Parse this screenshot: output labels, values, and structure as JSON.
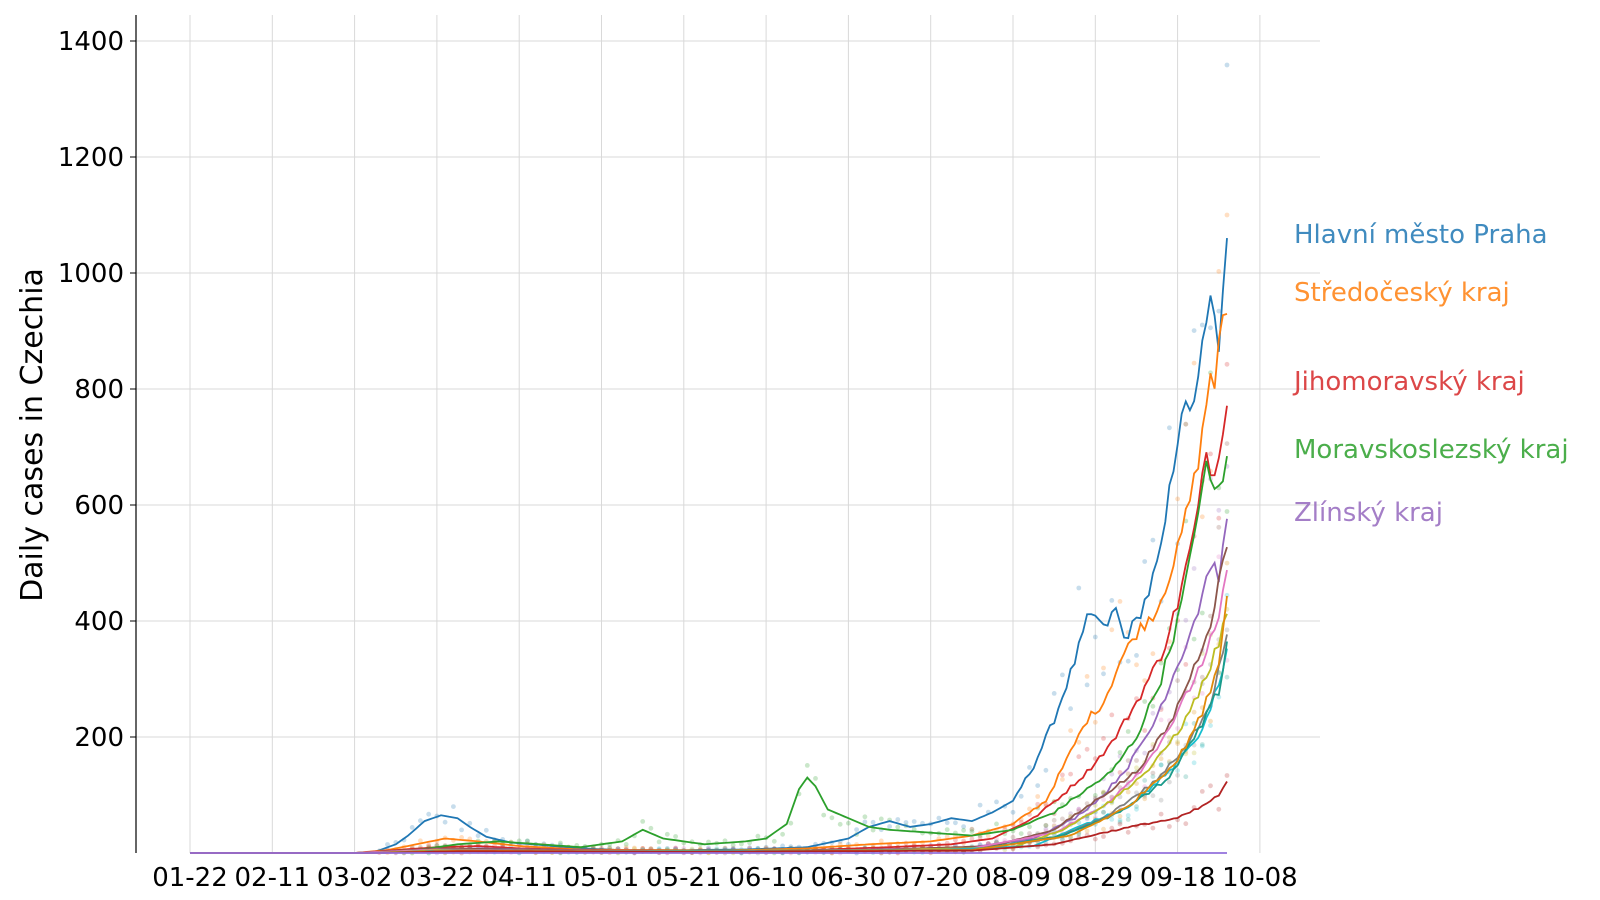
{
  "chart_data": {
    "type": "line",
    "ylabel": "Daily cases in Czechia",
    "xlabel": "",
    "title": "",
    "ylim": [
      0,
      1450
    ],
    "y_ticks": [
      200,
      400,
      600,
      800,
      1000,
      1200,
      1400
    ],
    "x_ticks": [
      "01-22",
      "02-11",
      "03-02",
      "03-22",
      "04-11",
      "05-01",
      "05-21",
      "06-10",
      "06-30",
      "07-20",
      "08-09",
      "08-29",
      "09-18",
      "10-08"
    ],
    "grid": true,
    "raw_points_shown": true,
    "series": [
      {
        "name": "Hlavní město Praha",
        "color": "#1f77b4",
        "labeled": true,
        "points": [
          [
            0,
            0
          ],
          [
            40,
            0
          ],
          [
            45,
            2
          ],
          [
            50,
            15
          ],
          [
            53,
            30
          ],
          [
            57,
            55
          ],
          [
            61,
            65
          ],
          [
            65,
            60
          ],
          [
            68,
            45
          ],
          [
            72,
            28
          ],
          [
            78,
            18
          ],
          [
            85,
            14
          ],
          [
            95,
            8
          ],
          [
            105,
            5
          ],
          [
            120,
            5
          ],
          [
            135,
            6
          ],
          [
            150,
            10
          ],
          [
            160,
            25
          ],
          [
            165,
            45
          ],
          [
            170,
            55
          ],
          [
            175,
            45
          ],
          [
            180,
            50
          ],
          [
            185,
            60
          ],
          [
            190,
            55
          ],
          [
            195,
            70
          ],
          [
            200,
            90
          ],
          [
            205,
            150
          ],
          [
            210,
            230
          ],
          [
            215,
            330
          ],
          [
            218,
            400
          ],
          [
            220,
            410
          ],
          [
            222,
            385
          ],
          [
            225,
            420
          ],
          [
            227,
            370
          ],
          [
            230,
            400
          ],
          [
            233,
            450
          ],
          [
            236,
            520
          ],
          [
            238,
            620
          ],
          [
            241,
            770
          ],
          [
            243,
            750
          ],
          [
            245,
            830
          ],
          [
            247,
            900
          ],
          [
            248,
            950
          ],
          [
            250,
            880
          ],
          [
            251,
            950
          ],
          [
            252,
            1040
          ]
        ]
      },
      {
        "name": "Středočeský kraj",
        "color": "#ff7f0e",
        "labeled": true,
        "points": [
          [
            0,
            0
          ],
          [
            40,
            0
          ],
          [
            48,
            5
          ],
          [
            55,
            15
          ],
          [
            62,
            25
          ],
          [
            70,
            20
          ],
          [
            80,
            12
          ],
          [
            95,
            6
          ],
          [
            110,
            5
          ],
          [
            130,
            4
          ],
          [
            150,
            8
          ],
          [
            165,
            15
          ],
          [
            180,
            20
          ],
          [
            190,
            30
          ],
          [
            200,
            50
          ],
          [
            208,
            90
          ],
          [
            213,
            160
          ],
          [
            218,
            230
          ],
          [
            222,
            260
          ],
          [
            226,
            330
          ],
          [
            230,
            380
          ],
          [
            235,
            420
          ],
          [
            240,
            520
          ],
          [
            244,
            640
          ],
          [
            246,
            720
          ],
          [
            248,
            830
          ],
          [
            249,
            810
          ],
          [
            250,
            870
          ],
          [
            252,
            940
          ]
        ]
      },
      {
        "name": "Jihomoravský kraj",
        "color": "#d62728",
        "labeled": true,
        "points": [
          [
            0,
            0
          ],
          [
            40,
            0
          ],
          [
            50,
            5
          ],
          [
            60,
            10
          ],
          [
            70,
            12
          ],
          [
            80,
            8
          ],
          [
            95,
            5
          ],
          [
            110,
            4
          ],
          [
            130,
            3
          ],
          [
            150,
            5
          ],
          [
            170,
            10
          ],
          [
            185,
            15
          ],
          [
            195,
            25
          ],
          [
            205,
            60
          ],
          [
            212,
            100
          ],
          [
            218,
            140
          ],
          [
            224,
            190
          ],
          [
            230,
            260
          ],
          [
            236,
            340
          ],
          [
            240,
            430
          ],
          [
            243,
            520
          ],
          [
            245,
            590
          ],
          [
            247,
            690
          ],
          [
            249,
            650
          ],
          [
            252,
            790
          ]
        ]
      },
      {
        "name": "Moravskoslezský kraj",
        "color": "#2ca02c",
        "labeled": true,
        "points": [
          [
            0,
            0
          ],
          [
            40,
            0
          ],
          [
            55,
            5
          ],
          [
            65,
            15
          ],
          [
            75,
            20
          ],
          [
            85,
            15
          ],
          [
            95,
            10
          ],
          [
            105,
            20
          ],
          [
            110,
            40
          ],
          [
            115,
            25
          ],
          [
            125,
            15
          ],
          [
            135,
            20
          ],
          [
            140,
            25
          ],
          [
            145,
            50
          ],
          [
            148,
            110
          ],
          [
            150,
            130
          ],
          [
            152,
            115
          ],
          [
            155,
            75
          ],
          [
            160,
            60
          ],
          [
            165,
            45
          ],
          [
            170,
            40
          ],
          [
            180,
            35
          ],
          [
            190,
            30
          ],
          [
            200,
            40
          ],
          [
            210,
            70
          ],
          [
            218,
            110
          ],
          [
            224,
            140
          ],
          [
            230,
            200
          ],
          [
            236,
            300
          ],
          [
            240,
            400
          ],
          [
            243,
            500
          ],
          [
            245,
            600
          ],
          [
            247,
            660
          ],
          [
            249,
            620
          ],
          [
            252,
            670
          ]
        ]
      },
      {
        "name": "Zlínský kraj",
        "color": "#9467bd",
        "labeled": true,
        "points": [
          [
            0,
            0
          ],
          [
            40,
            0
          ],
          [
            55,
            3
          ],
          [
            70,
            8
          ],
          [
            85,
            6
          ],
          [
            100,
            4
          ],
          [
            130,
            3
          ],
          [
            160,
            5
          ],
          [
            190,
            10
          ],
          [
            205,
            25
          ],
          [
            215,
            60
          ],
          [
            222,
            100
          ],
          [
            228,
            150
          ],
          [
            234,
            220
          ],
          [
            238,
            290
          ],
          [
            242,
            360
          ],
          [
            245,
            420
          ],
          [
            248,
            500
          ],
          [
            250,
            480
          ],
          [
            252,
            560
          ]
        ]
      },
      {
        "name": "",
        "color": "#8c564b",
        "labeled": false,
        "points": [
          [
            0,
            0
          ],
          [
            40,
            0
          ],
          [
            60,
            8
          ],
          [
            80,
            6
          ],
          [
            120,
            3
          ],
          [
            160,
            4
          ],
          [
            195,
            12
          ],
          [
            210,
            40
          ],
          [
            220,
            90
          ],
          [
            230,
            140
          ],
          [
            238,
            220
          ],
          [
            244,
            320
          ],
          [
            248,
            400
          ],
          [
            252,
            530
          ]
        ]
      },
      {
        "name": "",
        "color": "#e377c2",
        "labeled": false,
        "points": [
          [
            0,
            0
          ],
          [
            40,
            0
          ],
          [
            60,
            6
          ],
          [
            90,
            4
          ],
          [
            150,
            3
          ],
          [
            190,
            8
          ],
          [
            210,
            35
          ],
          [
            222,
            80
          ],
          [
            232,
            150
          ],
          [
            240,
            240
          ],
          [
            246,
            330
          ],
          [
            250,
            400
          ],
          [
            252,
            480
          ]
        ]
      },
      {
        "name": "",
        "color": "#bcbd22",
        "labeled": false,
        "points": [
          [
            0,
            0
          ],
          [
            45,
            0
          ],
          [
            60,
            5
          ],
          [
            100,
            3
          ],
          [
            170,
            5
          ],
          [
            200,
            10
          ],
          [
            212,
            40
          ],
          [
            224,
            90
          ],
          [
            234,
            150
          ],
          [
            242,
            230
          ],
          [
            248,
            320
          ],
          [
            252,
            410
          ]
        ]
      },
      {
        "name": "",
        "color": "#17becf",
        "labeled": false,
        "points": [
          [
            0,
            0
          ],
          [
            45,
            0
          ],
          [
            62,
            4
          ],
          [
            110,
            3
          ],
          [
            180,
            5
          ],
          [
            205,
            12
          ],
          [
            216,
            45
          ],
          [
            228,
            80
          ],
          [
            238,
            140
          ],
          [
            245,
            200
          ],
          [
            249,
            270
          ],
          [
            252,
            350
          ]
        ]
      },
      {
        "name": "",
        "color": "#7f7f7f",
        "labeled": false,
        "points": [
          [
            0,
            0
          ],
          [
            45,
            0
          ],
          [
            65,
            5
          ],
          [
            120,
            2
          ],
          [
            190,
            6
          ],
          [
            210,
            25
          ],
          [
            222,
            60
          ],
          [
            234,
            120
          ],
          [
            242,
            180
          ],
          [
            248,
            260
          ],
          [
            252,
            380
          ]
        ]
      },
      {
        "name": "",
        "color": "#1a9a8a",
        "labeled": false,
        "points": [
          [
            0,
            0
          ],
          [
            45,
            0
          ],
          [
            62,
            3
          ],
          [
            120,
            2
          ],
          [
            190,
            5
          ],
          [
            212,
            30
          ],
          [
            226,
            70
          ],
          [
            238,
            130
          ],
          [
            245,
            210
          ],
          [
            250,
            280
          ],
          [
            252,
            355
          ]
        ]
      },
      {
        "name": "",
        "color": "#e08a0a",
        "labeled": false,
        "points": [
          [
            0,
            0
          ],
          [
            45,
            0
          ],
          [
            66,
            4
          ],
          [
            120,
            2
          ],
          [
            190,
            5
          ],
          [
            214,
            30
          ],
          [
            228,
            80
          ],
          [
            240,
            160
          ],
          [
            246,
            240
          ],
          [
            250,
            330
          ],
          [
            252,
            440
          ]
        ]
      },
      {
        "name": "",
        "color": "#b22222",
        "labeled": false,
        "points": [
          [
            0,
            0
          ],
          [
            45,
            0
          ],
          [
            66,
            3
          ],
          [
            120,
            2
          ],
          [
            190,
            4
          ],
          [
            210,
            15
          ],
          [
            222,
            35
          ],
          [
            232,
            50
          ],
          [
            240,
            60
          ],
          [
            246,
            80
          ],
          [
            250,
            100
          ],
          [
            252,
            120
          ]
        ]
      },
      {
        "name": "",
        "color": "#9370db",
        "labeled": false,
        "points": [
          [
            0,
            0
          ],
          [
            252,
            0
          ]
        ]
      }
    ]
  }
}
